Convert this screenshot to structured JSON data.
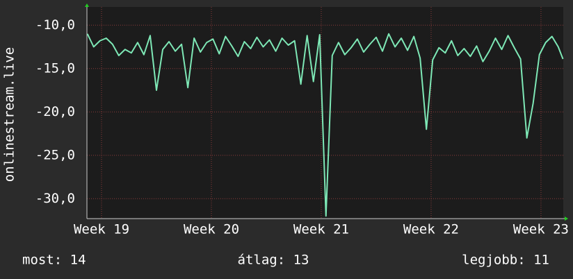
{
  "chart_data": {
    "type": "line",
    "y_label": "onlinestream.live",
    "x": [
      -0.9,
      -0.5,
      -0.1,
      0.3,
      0.7,
      1.1,
      1.5,
      1.9,
      2.3,
      2.7,
      3.1,
      3.5,
      3.9,
      4.3,
      4.7,
      5.1,
      5.5,
      5.9,
      6.3,
      6.7,
      7.1,
      7.5,
      7.9,
      8.3,
      8.7,
      9.1,
      9.5,
      9.9,
      10.3,
      10.7,
      11.1,
      11.5,
      11.9,
      12.3,
      12.7,
      13.1,
      13.5,
      13.9,
      14.3,
      14.7,
      15.1,
      15.5,
      15.9,
      16.3,
      16.7,
      17.1,
      17.5,
      17.9,
      18.3,
      18.7,
      19.1,
      19.5,
      19.9,
      20.3,
      20.7,
      21.1,
      21.5,
      21.9,
      22.3,
      22.7,
      23.1,
      23.5,
      23.9,
      24.3,
      24.7,
      25.1,
      25.5,
      25.9,
      26.3,
      26.7,
      27.1,
      27.5,
      27.9,
      28.3,
      28.7,
      29.1,
      29.4
    ],
    "series": [
      {
        "color": "#7ee8b6",
        "values": [
          -11.0,
          -12.5,
          -11.8,
          -11.5,
          -12.2,
          -13.5,
          -12.8,
          -13.2,
          -12.0,
          -13.4,
          -11.2,
          -17.5,
          -12.8,
          -11.9,
          -13.0,
          -12.2,
          -17.2,
          -11.5,
          -13.1,
          -12.0,
          -11.6,
          -13.3,
          -11.3,
          -12.4,
          -13.6,
          -11.9,
          -12.7,
          -11.4,
          -12.5,
          -11.7,
          -13.0,
          -11.5,
          -12.3,
          -11.8,
          -16.8,
          -11.2,
          -16.5,
          -11.1,
          -32,
          -13.5,
          -12.0,
          -13.4,
          -12.6,
          -11.6,
          -13.1,
          -12.2,
          -11.4,
          -13.0,
          -11.0,
          -12.5,
          -11.5,
          -12.9,
          -11.3,
          -13.8,
          -22.0,
          -14.0,
          -12.6,
          -13.2,
          -11.8,
          -13.5,
          -12.7,
          -13.6,
          -12.4,
          -14.2,
          -13.0,
          -11.5,
          -12.8,
          -11.2,
          -12.6,
          -13.9,
          -23.0,
          -19.0,
          -13.4,
          -12.0,
          -11.3,
          -12.5,
          -13.9
        ]
      }
    ],
    "xlim": [
      -0.93,
      29.42
    ],
    "xticks": [
      {
        "value": 0,
        "label": "Week 19"
      },
      {
        "value": 7,
        "label": "Week 20"
      },
      {
        "value": 14,
        "label": "Week 21"
      },
      {
        "value": 21,
        "label": "Week 22"
      },
      {
        "value": 28,
        "label": "Week 23"
      }
    ],
    "ylim": [
      -32.3,
      -7.9
    ],
    "yticks": [
      {
        "value": -30,
        "label": "-30,0"
      },
      {
        "value": -25,
        "label": "-25,0"
      },
      {
        "value": -20,
        "label": "-20,0"
      },
      {
        "value": -15,
        "label": "-15,0"
      },
      {
        "value": -10,
        "label": "-10,0"
      }
    ],
    "grid": true,
    "stats": [
      "most: 14",
      "átlag: 13",
      "legjobb: 11"
    ]
  }
}
